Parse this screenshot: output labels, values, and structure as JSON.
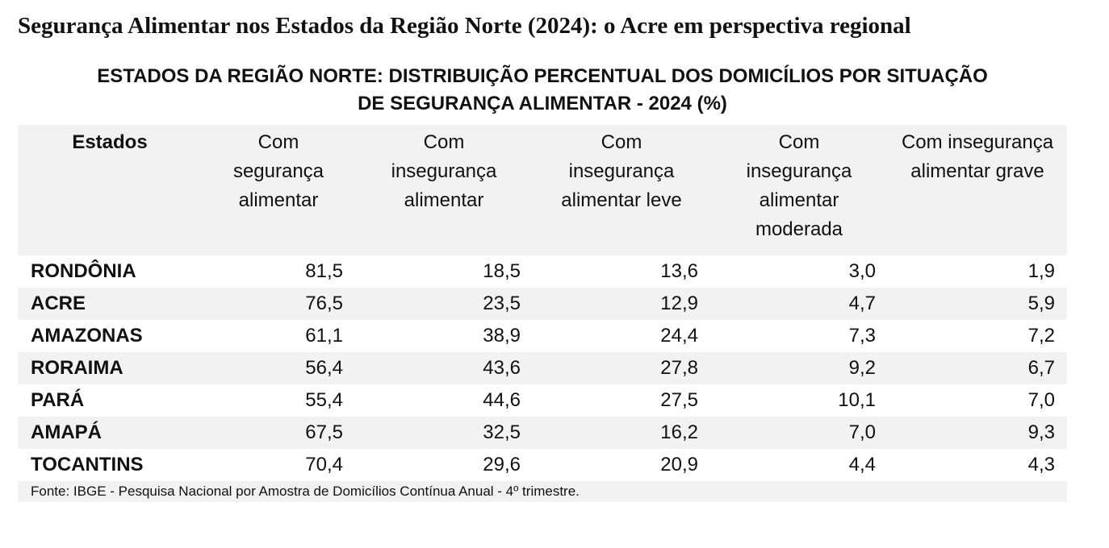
{
  "header": {
    "title": "Segurança Alimentar nos Estados da Região Norte (2024): o Acre em perspectiva regional"
  },
  "table": {
    "title": "ESTADOS DA REGIÃO NORTE: DISTRIBUIÇÃO PERCENTUAL DOS DOMICÍLIOS POR SITUAÇÃO DE SEGURANÇA ALIMENTAR - 2024 (%)",
    "columns": [
      "Estados",
      "Com segurança alimentar",
      "Com insegurança alimentar",
      "Com insegurança alimentar leve",
      "Com insegurança alimentar moderada",
      "Com insegurança alimentar grave"
    ],
    "rows": [
      [
        "RONDÔNIA",
        "81,5",
        "18,5",
        "13,6",
        "3,0",
        "1,9"
      ],
      [
        "ACRE",
        "76,5",
        "23,5",
        "12,9",
        "4,7",
        "5,9"
      ],
      [
        "AMAZONAS",
        "61,1",
        "38,9",
        "24,4",
        "7,3",
        "7,2"
      ],
      [
        "RORAIMA",
        "56,4",
        "43,6",
        "27,8",
        "9,2",
        "6,7"
      ],
      [
        "PARÁ",
        "55,4",
        "44,6",
        "27,5",
        "10,1",
        "7,0"
      ],
      [
        "AMAPÁ",
        "67,5",
        "32,5",
        "16,2",
        "7,0",
        "9,3"
      ],
      [
        "TOCANTINS",
        "70,4",
        "29,6",
        "20,9",
        "4,4",
        "4,3"
      ]
    ],
    "source": "Fonte: IBGE - Pesquisa Nacional por Amostra de Domicílios Contínua Anual - 4º trimestre."
  }
}
